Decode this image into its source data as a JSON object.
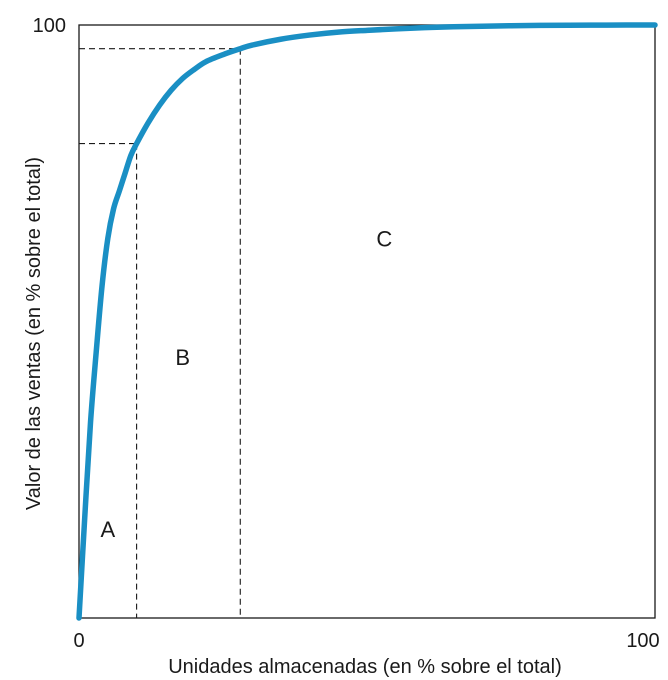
{
  "chart_data": {
    "type": "line",
    "title": "",
    "xlabel": "Unidades almacenadas (en % sobre el total)",
    "ylabel": "Valor de las ventas (en % sobre el total)",
    "xlim": [
      0,
      100
    ],
    "ylim": [
      0,
      100
    ],
    "x_ticks": [
      "0",
      "100"
    ],
    "y_ticks": [
      "100"
    ],
    "grid": false,
    "legend": "none",
    "series": [
      {
        "color": "#1a8fc4",
        "x": [
          0,
          1,
          2,
          3,
          4,
          5,
          6,
          7,
          8,
          9,
          10,
          12,
          14,
          16,
          18,
          20,
          22,
          25,
          28,
          30,
          35,
          40,
          45,
          50,
          55,
          60,
          65,
          70,
          75,
          80,
          85,
          90,
          95,
          100
        ],
        "y": [
          0,
          17,
          33,
          45,
          56,
          64,
          69,
          72,
          75,
          78,
          80,
          83.5,
          86.5,
          89,
          91,
          92.5,
          93.8,
          95,
          96,
          96.6,
          97.6,
          98.3,
          98.8,
          99.1,
          99.35,
          99.55,
          99.7,
          99.8,
          99.88,
          99.93,
          99.96,
          99.98,
          99.99,
          100
        ]
      }
    ],
    "reference_lines": [
      {
        "x": 10,
        "y": 80
      },
      {
        "x": 28,
        "y": 96
      }
    ],
    "zones": [
      {
        "label": "A",
        "x": 5,
        "y": 15
      },
      {
        "label": "B",
        "x": 18,
        "y": 44
      },
      {
        "label": "C",
        "x": 53,
        "y": 64
      }
    ]
  }
}
